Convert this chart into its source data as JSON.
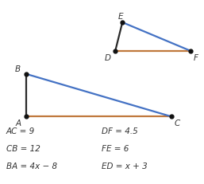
{
  "bg_color": "#ffffff",
  "triangle_ABC": {
    "A": [
      0.13,
      0.365
    ],
    "B": [
      0.13,
      0.595
    ],
    "C": [
      0.84,
      0.365
    ]
  },
  "triangle_DEF": {
    "D": [
      0.565,
      0.72
    ],
    "E": [
      0.6,
      0.875
    ],
    "F": [
      0.935,
      0.72
    ]
  },
  "blue_color": "#4472c4",
  "brown_color": "#c0783c",
  "dark_color": "#2a2a2a",
  "dot_color": "#111111",
  "text_color": "#333333",
  "labels_left": [
    "AC = 9",
    "CB = 12",
    "BA = 4x − 8"
  ],
  "labels_right": [
    "DF = 4.5",
    "FE = 6",
    "ED = x + 3"
  ],
  "label_fontsize": 7.5
}
